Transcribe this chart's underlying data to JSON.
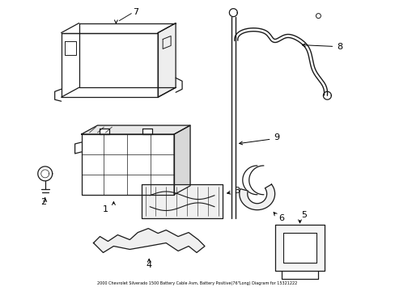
{
  "title": "2000 Chevrolet Silverado 1500 Battery Cable Asm, Battery Positive(76\"Long) Diagram for 15321222",
  "background_color": "#ffffff",
  "line_color": "#1a1a1a",
  "fig_width": 4.89,
  "fig_height": 3.6,
  "dpi": 100
}
